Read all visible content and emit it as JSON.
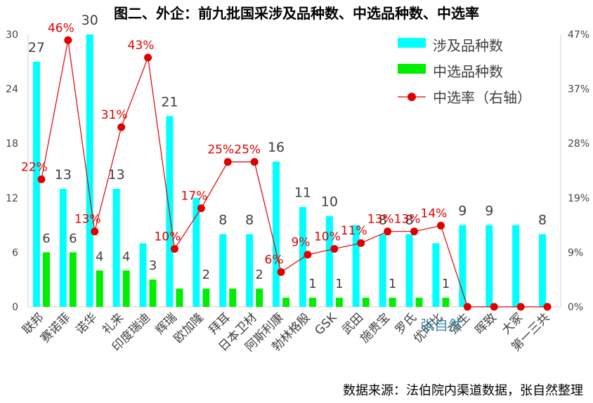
{
  "chart_data": {
    "type": "bar",
    "title": "图二、外企：前九批国采涉及品种数、中选品种数、中选率",
    "categories": [
      "联邦",
      "赛诺菲",
      "诺华",
      "礼来",
      "印度瑞迪",
      "辉瑞",
      "欧加隆",
      "拜耳",
      "日本卫材",
      "阿斯利康",
      "勃林格殷",
      "GSK",
      "武田",
      "施贵宝",
      "罗氏",
      "优时比",
      "强生",
      "晖致",
      "大冢",
      "第一三共"
    ],
    "series": [
      {
        "name": "涉及品种数",
        "axis": "left",
        "color": "#00FFFF",
        "values": [
          27,
          13,
          30,
          13,
          7,
          21,
          12,
          8,
          8,
          16,
          11,
          10,
          9,
          8,
          8,
          7,
          9,
          9,
          9,
          8
        ]
      },
      {
        "name": "中选品种数",
        "axis": "left",
        "color": "#00EE00",
        "values": [
          6,
          6,
          4,
          4,
          3,
          2,
          2,
          2,
          2,
          1,
          1,
          1,
          1,
          1,
          1,
          1,
          0,
          0,
          0,
          0
        ]
      },
      {
        "name": "中选率（右轴）",
        "axis": "right",
        "color": "#E00000",
        "values": [
          22,
          46,
          13,
          31,
          43,
          10,
          17,
          25,
          25,
          6,
          9,
          10,
          11,
          13,
          13,
          14,
          0,
          0,
          0,
          0
        ]
      }
    ],
    "bar_labels": {
      "涉及品种数": [
        "27",
        "13",
        "30",
        "13",
        "",
        "21",
        "",
        "8",
        "8",
        "16",
        "11",
        "10",
        "",
        "8",
        "8",
        "",
        "9",
        "9",
        "",
        "8"
      ],
      "中选品种数": [
        "6",
        "6",
        "4",
        "4",
        "3",
        "",
        "2",
        "",
        "2",
        "",
        "1",
        "1",
        "",
        "1",
        "",
        "1",
        "",
        "",
        "",
        ""
      ],
      "中选率（右轴）": [
        "22%",
        "46%",
        "13%",
        "31%",
        "43%",
        "10%",
        "17%",
        "25%",
        "25%",
        "6%",
        "9%",
        "10%",
        "11%",
        "13%",
        "13%",
        "14%",
        "",
        "",
        "",
        ""
      ]
    },
    "y_left": {
      "ticks": [
        "0",
        "6",
        "12",
        "18",
        "24",
        "30"
      ],
      "ylim": [
        0,
        30
      ]
    },
    "y_right": {
      "ticks": [
        "0%",
        "9%",
        "19%",
        "28%",
        "37%",
        "47%"
      ],
      "ylim": [
        0,
        47
      ]
    },
    "legend_position": "top-right",
    "grid": false,
    "watermark": "张自然"
  },
  "source_note": "数据来源：法伯院内渠道数据，张自然整理"
}
